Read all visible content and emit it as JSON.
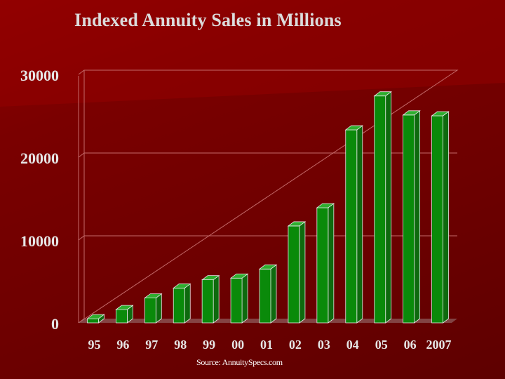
{
  "chart_data": {
    "type": "bar",
    "title": "Indexed Annuity Sales in Millions",
    "source": "Source: AnnuitySpecs.com",
    "categories": [
      "95",
      "96",
      "97",
      "98",
      "99",
      "00",
      "01",
      "02",
      "03",
      "04",
      "05",
      "06",
      "2007"
    ],
    "values": [
      500,
      1600,
      3000,
      4200,
      5200,
      5400,
      6500,
      11700,
      13900,
      23300,
      27400,
      25100,
      25000
    ],
    "ylim": [
      0,
      30000
    ],
    "yticks": [
      "0",
      "10000",
      "20000",
      "30000"
    ],
    "xlabel": "",
    "ylabel": "",
    "grid": true,
    "legend": "none",
    "colors": {
      "bar_front": "#0a8a0a",
      "bar_side": "#0e6a0e",
      "bar_top": "#2fae2f",
      "bar_edge": "#e8e8e8",
      "grid": "#c46a6a",
      "axis_text": "#e6e6e6",
      "title": "#dcdcdc"
    }
  }
}
